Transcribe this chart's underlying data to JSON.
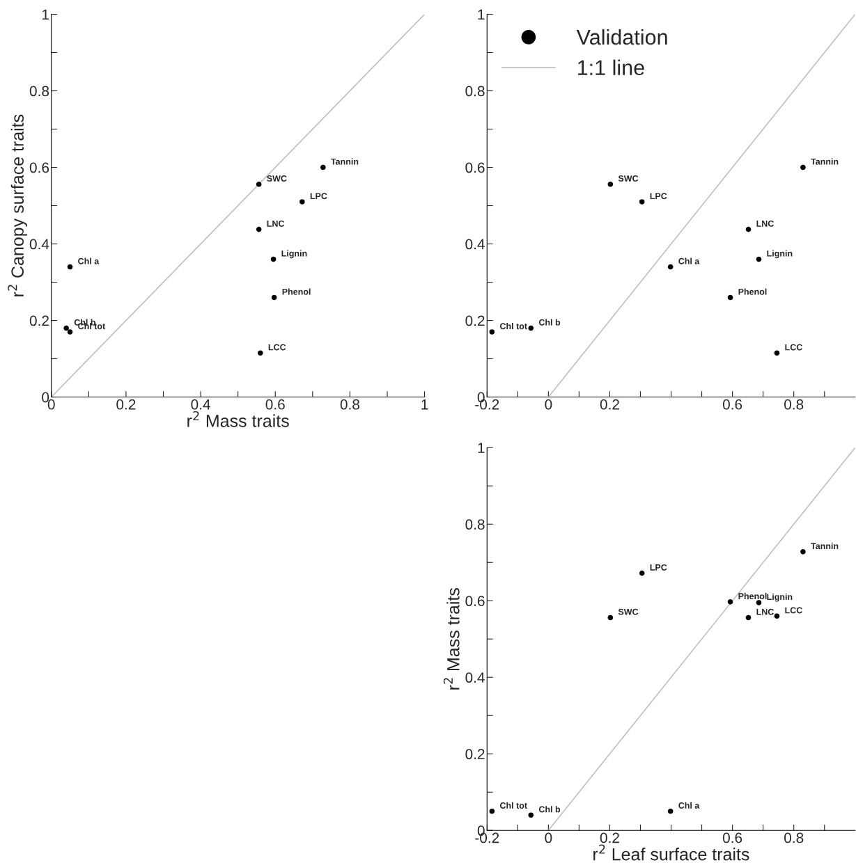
{
  "chart_data": [
    {
      "type": "scatter",
      "xlabel": "r$^{2}$ Mass traits",
      "ylabel": "r$^{2}$ Canopy surface traits",
      "xlim": [
        0,
        1
      ],
      "ylim": [
        0,
        1
      ],
      "xticks": [
        0,
        {
          "value": 0.1,
          "label": null
        },
        0.2,
        {
          "value": 0.3,
          "label": null
        },
        0.4,
        {
          "value": 0.5,
          "label": null
        },
        0.6,
        {
          "value": 0.7,
          "label": null
        },
        0.8,
        {
          "value": 0.9,
          "label": null
        },
        1
      ],
      "yticks": [
        0,
        {
          "value": 0.1,
          "label": null
        },
        0.2,
        {
          "value": 0.3,
          "label": null
        },
        0.4,
        {
          "value": 0.5,
          "label": null
        },
        0.6,
        {
          "value": 0.7,
          "label": null
        },
        0.8,
        {
          "value": 0.9,
          "label": null
        },
        1
      ],
      "grid": false,
      "legend": false,
      "series": [
        {
          "marker": "circle",
          "color": "#000000",
          "x": [
            0.05,
            0.04,
            0.05,
            0.556,
            0.556,
            0.56,
            0.595,
            0.597,
            0.672,
            0.728
          ],
          "values": [
            0.34,
            0.18,
            0.17,
            0.556,
            0.438,
            0.115,
            0.36,
            0.26,
            0.51,
            0.6
          ]
        },
        {
          "type": "line",
          "color": "#c0c0c0",
          "line_style": "solid",
          "x": [
            0,
            1
          ],
          "values": [
            0,
            1
          ]
        }
      ],
      "annotations": [
        {
          "text": "Chl a",
          "x": 0.05,
          "y": 0.34
        },
        {
          "text": "Chl b",
          "x": 0.04,
          "y": 0.18
        },
        {
          "text": "Chl tot",
          "x": 0.05,
          "y": 0.17
        },
        {
          "text": "SWC",
          "x": 0.556,
          "y": 0.556
        },
        {
          "text": "LNC",
          "x": 0.556,
          "y": 0.438
        },
        {
          "text": "LCC",
          "x": 0.56,
          "y": 0.115
        },
        {
          "text": "Lignin",
          "x": 0.595,
          "y": 0.36
        },
        {
          "text": "Phenol",
          "x": 0.597,
          "y": 0.26
        },
        {
          "text": "LPC",
          "x": 0.672,
          "y": 0.51
        },
        {
          "text": "Tannin",
          "x": 0.728,
          "y": 0.6
        }
      ]
    },
    {
      "type": "scatter",
      "xlim": [
        -0.2,
        1
      ],
      "ylim": [
        0,
        1
      ],
      "xticks": [
        -0.2,
        {
          "value": -0.1,
          "label": null
        },
        0,
        {
          "value": 0.1,
          "label": null
        },
        0.2,
        {
          "value": 0.3,
          "label": null
        },
        {
          "value": 0.4,
          "label": null
        },
        {
          "value": 0.5,
          "label": null
        },
        0.6,
        {
          "value": 0.7,
          "label": null
        },
        0.8,
        {
          "value": 0.9,
          "label": null
        }
      ],
      "yticks": [
        0,
        {
          "value": 0.1,
          "label": null
        },
        0.2,
        {
          "value": 0.3,
          "label": null
        },
        0.4,
        {
          "value": 0.5,
          "label": null
        },
        0.6,
        {
          "value": 0.7,
          "label": null
        },
        0.8,
        {
          "value": 0.9,
          "label": null
        },
        1
      ],
      "grid": false,
      "legend": "top left",
      "series": [
        {
          "marker": "circle",
          "name": "Validation",
          "color": "#000000",
          "x": [
            0.398,
            -0.057,
            -0.184,
            0.202,
            0.652,
            0.745,
            0.686,
            0.593,
            0.305,
            0.83
          ],
          "values": [
            0.34,
            0.18,
            0.17,
            0.556,
            0.438,
            0.115,
            0.36,
            0.26,
            0.51,
            0.6
          ]
        },
        {
          "type": "line",
          "name": "1:1 line",
          "color": "#c0c0c0",
          "line_style": "solid",
          "x": [
            0,
            1
          ],
          "values": [
            0,
            1
          ]
        }
      ],
      "annotations": [
        {
          "text": "Chl a",
          "x": 0.398,
          "y": 0.34
        },
        {
          "text": "Chl b",
          "x": -0.057,
          "y": 0.18
        },
        {
          "text": "Chl tot",
          "x": -0.184,
          "y": 0.17
        },
        {
          "text": "SWC",
          "x": 0.202,
          "y": 0.556
        },
        {
          "text": "LNC",
          "x": 0.652,
          "y": 0.438
        },
        {
          "text": "LCC",
          "x": 0.745,
          "y": 0.115
        },
        {
          "text": "Lignin",
          "x": 0.686,
          "y": 0.36
        },
        {
          "text": "Phenol",
          "x": 0.593,
          "y": 0.26
        },
        {
          "text": "LPC",
          "x": 0.305,
          "y": 0.51
        },
        {
          "text": "Tannin",
          "x": 0.83,
          "y": 0.6
        }
      ]
    },
    {
      "type": "scatter",
      "xlabel": "r$^{2}$ Leaf surface traits",
      "ylabel": "r$^{2}$ Mass traits",
      "xlim": [
        -0.2,
        1
      ],
      "ylim": [
        0,
        1
      ],
      "xticks": [
        -0.2,
        {
          "value": -0.1,
          "label": null
        },
        0,
        {
          "value": 0.1,
          "label": null
        },
        0.2,
        {
          "value": 0.3,
          "label": null
        },
        {
          "value": 0.4,
          "label": null
        },
        {
          "value": 0.5,
          "label": null
        },
        0.6,
        {
          "value": 0.7,
          "label": null
        },
        0.8,
        {
          "value": 0.9,
          "label": null
        }
      ],
      "yticks": [
        0,
        {
          "value": 0.1,
          "label": null
        },
        0.2,
        {
          "value": 0.3,
          "label": null
        },
        0.4,
        {
          "value": 0.5,
          "label": null
        },
        0.6,
        {
          "value": 0.7,
          "label": null
        },
        0.8,
        {
          "value": 0.9,
          "label": null
        },
        1
      ],
      "grid": false,
      "legend": false,
      "series": [
        {
          "marker": "circle",
          "color": "#000000",
          "x": [
            0.398,
            -0.057,
            -0.184,
            0.202,
            0.652,
            0.745,
            0.686,
            0.593,
            0.305,
            0.83
          ],
          "values": [
            0.05,
            0.04,
            0.05,
            0.556,
            0.556,
            0.56,
            0.595,
            0.597,
            0.672,
            0.728
          ]
        },
        {
          "type": "line",
          "color": "#c0c0c0",
          "line_style": "solid",
          "x": [
            0,
            1
          ],
          "values": [
            0,
            1
          ]
        }
      ],
      "annotations": [
        {
          "text": "Chl a",
          "x": 0.398,
          "y": 0.05
        },
        {
          "text": "Chl b",
          "x": -0.057,
          "y": 0.04
        },
        {
          "text": "Chl tot",
          "x": -0.184,
          "y": 0.05
        },
        {
          "text": "SWC",
          "x": 0.202,
          "y": 0.556
        },
        {
          "text": "LNC",
          "x": 0.652,
          "y": 0.556
        },
        {
          "text": "LCC",
          "x": 0.745,
          "y": 0.56
        },
        {
          "text": "Lignin",
          "x": 0.686,
          "y": 0.595
        },
        {
          "text": "Phenol",
          "x": 0.593,
          "y": 0.597
        },
        {
          "text": "LPC",
          "x": 0.305,
          "y": 0.672
        },
        {
          "text": "Tannin",
          "x": 0.83,
          "y": 0.728
        }
      ]
    }
  ]
}
